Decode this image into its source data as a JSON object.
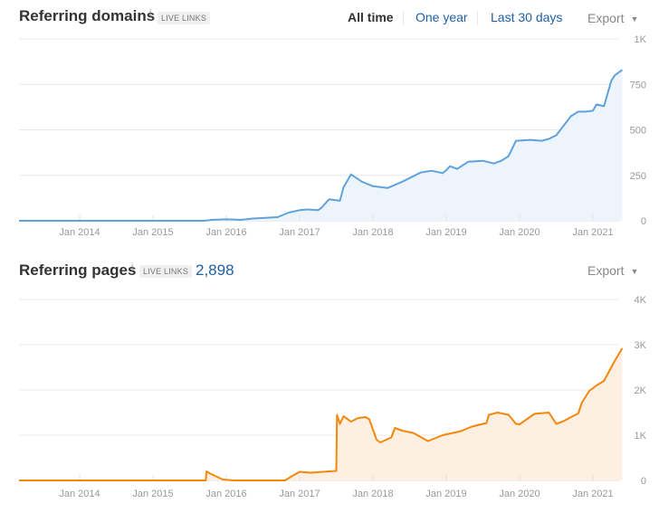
{
  "range_selector": {
    "options": [
      {
        "label": "All time",
        "active": true
      },
      {
        "label": "One year",
        "active": false
      },
      {
        "label": "Last 30 days",
        "active": false
      }
    ]
  },
  "panels": [
    {
      "title": "Referring domains",
      "info_icon": "i",
      "badge": "LIVE LINKS",
      "count": "",
      "export_label": "Export",
      "export_icon": "caret-down-icon",
      "colors": {
        "line": "#5fa3dc",
        "fill": "#eef4fc"
      }
    },
    {
      "title": "Referring pages",
      "info_icon": "i",
      "badge": "LIVE LINKS",
      "count": "2,898",
      "export_label": "Export",
      "export_icon": "caret-down-icon",
      "colors": {
        "line": "#f5870a",
        "fill": "#fdf0e3"
      }
    }
  ],
  "chart_data": [
    {
      "type": "area",
      "title": "Referring domains",
      "xlabel": "",
      "ylabel": "",
      "x_ticks": [
        "Jan 2014",
        "Jan 2015",
        "Jan 2016",
        "Jan 2017",
        "Jan 2018",
        "Jan 2019",
        "Jan 2020",
        "Jan 2021"
      ],
      "y_ticks": [
        "1K",
        "750",
        "500",
        "250",
        "0"
      ],
      "y_tick_values": [
        1000,
        750,
        500,
        250,
        0
      ],
      "ylim": [
        0,
        1000
      ],
      "grid": true,
      "legend": "none",
      "series": [
        {
          "name": "Referring domains",
          "x": [
            2013.2,
            2015.7,
            2015.8,
            2016.0,
            2016.2,
            2016.35,
            2016.7,
            2016.85,
            2017.0,
            2017.1,
            2017.25,
            2017.3,
            2017.4,
            2017.55,
            2017.6,
            2017.65,
            2017.7,
            2017.85,
            2018.0,
            2018.2,
            2018.4,
            2018.5,
            2018.65,
            2018.8,
            2018.95,
            2019.0,
            2019.05,
            2019.15,
            2019.3,
            2019.5,
            2019.65,
            2019.75,
            2019.85,
            2019.95,
            2020.15,
            2020.3,
            2020.4,
            2020.5,
            2020.7,
            2020.8,
            2020.9,
            2021.0,
            2021.05,
            2021.15,
            2021.25,
            2021.3,
            2021.4
          ],
          "values": [
            0,
            0,
            5,
            8,
            5,
            12,
            20,
            45,
            58,
            62,
            58,
            72,
            118,
            110,
            185,
            220,
            255,
            215,
            190,
            180,
            215,
            235,
            265,
            275,
            262,
            278,
            300,
            285,
            325,
            330,
            315,
            330,
            355,
            440,
            445,
            440,
            450,
            470,
            575,
            600,
            600,
            605,
            640,
            630,
            770,
            800,
            830
          ]
        }
      ]
    },
    {
      "type": "area",
      "title": "Referring pages",
      "xlabel": "",
      "ylabel": "",
      "x_ticks": [
        "Jan 2014",
        "Jan 2015",
        "Jan 2016",
        "Jan 2017",
        "Jan 2018",
        "Jan 2019",
        "Jan 2020",
        "Jan 2021"
      ],
      "y_ticks": [
        "4K",
        "3K",
        "2K",
        "1K",
        "0"
      ],
      "y_tick_values": [
        4000,
        3000,
        2000,
        1000,
        0
      ],
      "ylim": [
        0,
        4000
      ],
      "grid": true,
      "legend": "none",
      "series": [
        {
          "name": "Referring pages",
          "x": [
            2013.2,
            2015.72,
            2015.73,
            2015.78,
            2015.85,
            2015.95,
            2016.1,
            2016.8,
            2016.9,
            2017.0,
            2017.15,
            2017.4,
            2017.5,
            2017.51,
            2017.55,
            2017.6,
            2017.7,
            2017.8,
            2017.9,
            2017.95,
            2018.05,
            2018.1,
            2018.25,
            2018.3,
            2018.4,
            2018.55,
            2018.75,
            2018.95,
            2019.2,
            2019.35,
            2019.55,
            2019.58,
            2019.7,
            2019.85,
            2019.95,
            2020.0,
            2020.2,
            2020.25,
            2020.4,
            2020.5,
            2020.6,
            2020.7,
            2020.8,
            2020.85,
            2020.95,
            2021.05,
            2021.15,
            2021.3,
            2021.4
          ],
          "values": [
            0,
            0,
            200,
            150,
            100,
            20,
            0,
            0,
            100,
            190,
            170,
            200,
            210,
            1450,
            1250,
            1420,
            1300,
            1380,
            1400,
            1350,
            900,
            840,
            950,
            1160,
            1100,
            1050,
            870,
            1000,
            1090,
            1190,
            1270,
            1450,
            1500,
            1450,
            1250,
            1240,
            1470,
            1480,
            1500,
            1250,
            1310,
            1400,
            1480,
            1720,
            1980,
            2100,
            2200,
            2650,
            2920
          ]
        }
      ]
    }
  ]
}
